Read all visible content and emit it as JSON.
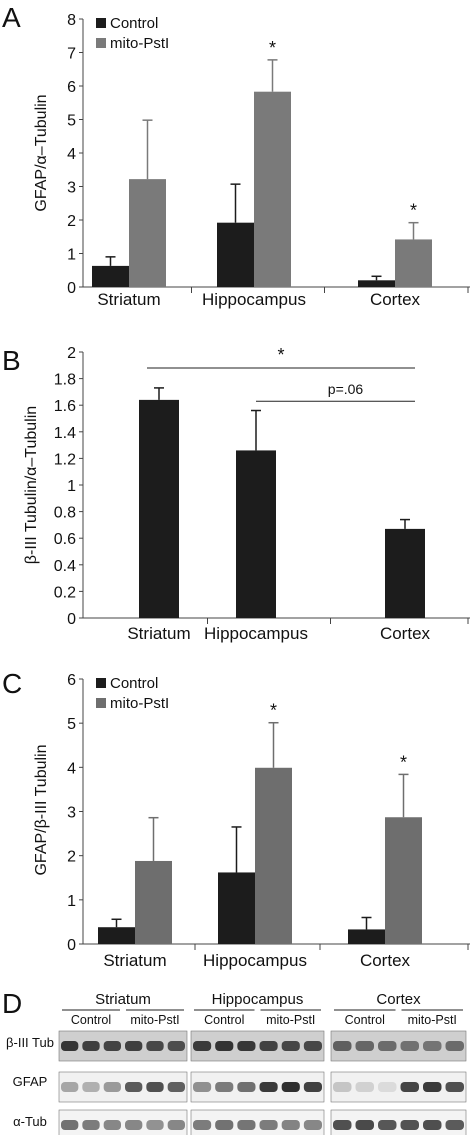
{
  "chart_data": [
    {
      "panel": "A",
      "type": "bar",
      "ylabel": "GFAP/α–Tubulin",
      "ylim": [
        0,
        8
      ],
      "yticks": [
        0,
        1,
        2,
        3,
        4,
        5,
        6,
        7,
        8
      ],
      "categories": [
        "Striatum",
        "Hippocampus",
        "Cortex"
      ],
      "legend_position": "top-left",
      "series": [
        {
          "name": "Control",
          "color": "#1c1c1c",
          "values": [
            0.63,
            1.92,
            0.2
          ],
          "errors": [
            0.27,
            1.15,
            0.12
          ]
        },
        {
          "name": "mito-PstI",
          "color": "#7a7a7a",
          "values": [
            3.22,
            5.83,
            1.42
          ],
          "errors": [
            1.76,
            0.95,
            0.5
          ]
        }
      ],
      "annotations": [
        {
          "text": "*",
          "category": "Hippocampus",
          "series": "mito-PstI"
        },
        {
          "text": "*",
          "category": "Cortex",
          "series": "mito-PstI"
        }
      ]
    },
    {
      "panel": "B",
      "type": "bar",
      "ylabel": "β-III Tubulin/α–Tubulin",
      "ylim": [
        0,
        2
      ],
      "yticks": [
        "0",
        "0.2",
        "0.4",
        "0.6",
        "0.8",
        "1",
        "1.2",
        "1.4",
        "1.6",
        "1.8",
        "2"
      ],
      "categories": [
        "Striatum",
        "Hippocampus",
        "Cortex"
      ],
      "series": [
        {
          "name": "",
          "color": "#1c1c1c",
          "values": [
            1.64,
            1.26,
            0.67
          ],
          "errors": [
            0.09,
            0.3,
            0.07
          ]
        }
      ],
      "brackets": [
        {
          "from": "Striatum",
          "to": "Cortex",
          "label": "*",
          "y": 1.88
        },
        {
          "from": "Hippocampus",
          "to": "Cortex",
          "label": "p=.06",
          "y": 1.63
        }
      ]
    },
    {
      "panel": "C",
      "type": "bar",
      "ylabel": "GFAP/β-III Tubulin",
      "ylim": [
        0,
        6
      ],
      "yticks": [
        0,
        1,
        2,
        3,
        4,
        5,
        6
      ],
      "categories": [
        "Striatum",
        "Hippocampus",
        "Cortex"
      ],
      "legend_position": "top-left",
      "series": [
        {
          "name": "Control",
          "color": "#1c1c1c",
          "values": [
            0.38,
            1.62,
            0.33
          ],
          "errors": [
            0.18,
            1.03,
            0.27
          ]
        },
        {
          "name": "mito-PstI",
          "color": "#6e6e6e",
          "values": [
            1.88,
            3.99,
            2.87
          ],
          "errors": [
            0.98,
            1.02,
            0.97
          ]
        }
      ],
      "annotations": [
        {
          "text": "*",
          "category": "Hippocampus",
          "series": "mito-PstI"
        },
        {
          "text": "*",
          "category": "Cortex",
          "series": "mito-PstI"
        }
      ]
    }
  ],
  "panel_labels": [
    "A",
    "B",
    "C",
    "D"
  ],
  "western_blot": {
    "regions": [
      "Striatum",
      "Hippocampus",
      "Cortex"
    ],
    "groups": [
      "Control",
      "mito-PstI"
    ],
    "rows": [
      "β-III Tub",
      "GFAP",
      "α-Tub"
    ]
  }
}
